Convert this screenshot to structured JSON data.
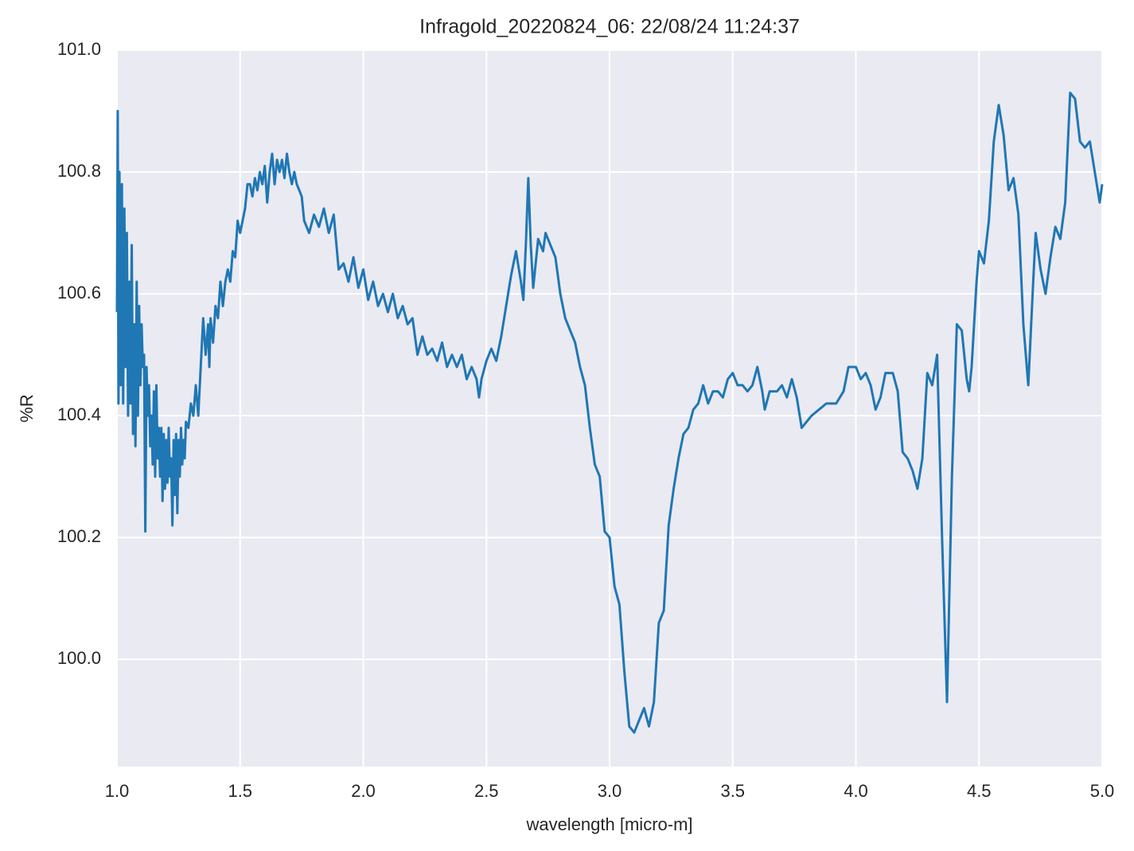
{
  "chart_data": {
    "type": "line",
    "title": "Infragold_20220824_06:  22/08/24 11:24:37",
    "xlabel": "wavelength [micro-m]",
    "ylabel": "%R",
    "color": "#1f77b4",
    "grid": true,
    "xlim": [
      1.0,
      5.0
    ],
    "ylim": [
      99.824,
      101.0
    ],
    "xticks": [
      {
        "value": 1,
        "label": "1.0"
      },
      1.5,
      {
        "value": 2,
        "label": "2.0"
      },
      2.5,
      {
        "value": 3,
        "label": "3.0"
      },
      3.5,
      {
        "value": 4,
        "label": "4.0"
      },
      4.5,
      {
        "value": 5,
        "label": "5.0"
      }
    ],
    "yticks": [
      {
        "value": 100,
        "label": "100.0"
      },
      100.2,
      100.4,
      100.6,
      100.8,
      {
        "value": 101,
        "label": "101.0"
      }
    ],
    "x": [
      1.0,
      1.003,
      1.006,
      1.01,
      1.015,
      1.02,
      1.025,
      1.03,
      1.035,
      1.04,
      1.045,
      1.05,
      1.055,
      1.06,
      1.065,
      1.07,
      1.075,
      1.08,
      1.085,
      1.09,
      1.095,
      1.1,
      1.105,
      1.11,
      1.115,
      1.12,
      1.125,
      1.13,
      1.135,
      1.14,
      1.145,
      1.15,
      1.155,
      1.16,
      1.165,
      1.17,
      1.175,
      1.18,
      1.185,
      1.19,
      1.195,
      1.2,
      1.205,
      1.21,
      1.215,
      1.22,
      1.225,
      1.23,
      1.235,
      1.24,
      1.245,
      1.25,
      1.255,
      1.26,
      1.265,
      1.27,
      1.275,
      1.28,
      1.29,
      1.3,
      1.31,
      1.32,
      1.33,
      1.34,
      1.345,
      1.35,
      1.36,
      1.37,
      1.375,
      1.38,
      1.39,
      1.4,
      1.41,
      1.42,
      1.43,
      1.44,
      1.45,
      1.46,
      1.47,
      1.48,
      1.49,
      1.5,
      1.51,
      1.52,
      1.53,
      1.54,
      1.55,
      1.56,
      1.57,
      1.58,
      1.59,
      1.6,
      1.61,
      1.62,
      1.63,
      1.64,
      1.65,
      1.66,
      1.67,
      1.68,
      1.69,
      1.7,
      1.71,
      1.72,
      1.73,
      1.75,
      1.76,
      1.78,
      1.8,
      1.82,
      1.84,
      1.86,
      1.88,
      1.9,
      1.92,
      1.94,
      1.96,
      1.98,
      2.0,
      2.02,
      2.04,
      2.06,
      2.08,
      2.1,
      2.12,
      2.14,
      2.16,
      2.18,
      2.2,
      2.22,
      2.24,
      2.26,
      2.28,
      2.3,
      2.32,
      2.34,
      2.36,
      2.38,
      2.4,
      2.42,
      2.44,
      2.46,
      2.47,
      2.48,
      2.5,
      2.52,
      2.54,
      2.56,
      2.58,
      2.6,
      2.62,
      2.64,
      2.65,
      2.66,
      2.67,
      2.68,
      2.69,
      2.71,
      2.73,
      2.74,
      2.76,
      2.78,
      2.8,
      2.82,
      2.84,
      2.86,
      2.88,
      2.9,
      2.92,
      2.94,
      2.96,
      2.98,
      3.0,
      3.02,
      3.04,
      3.06,
      3.08,
      3.1,
      3.12,
      3.14,
      3.16,
      3.18,
      3.2,
      3.22,
      3.24,
      3.26,
      3.28,
      3.3,
      3.32,
      3.34,
      3.36,
      3.38,
      3.4,
      3.42,
      3.44,
      3.46,
      3.48,
      3.5,
      3.52,
      3.54,
      3.56,
      3.58,
      3.6,
      3.62,
      3.63,
      3.65,
      3.68,
      3.7,
      3.72,
      3.74,
      3.76,
      3.78,
      3.8,
      3.82,
      3.85,
      3.88,
      3.9,
      3.92,
      3.95,
      3.97,
      4.0,
      4.02,
      4.04,
      4.06,
      4.08,
      4.1,
      4.12,
      4.15,
      4.17,
      4.19,
      4.21,
      4.23,
      4.25,
      4.27,
      4.29,
      4.31,
      4.33,
      4.35,
      4.37,
      4.39,
      4.41,
      4.43,
      4.45,
      4.46,
      4.47,
      4.49,
      4.5,
      4.52,
      4.54,
      4.56,
      4.58,
      4.6,
      4.62,
      4.64,
      4.66,
      4.68,
      4.7,
      4.72,
      4.73,
      4.75,
      4.77,
      4.79,
      4.81,
      4.83,
      4.85,
      4.87,
      4.89,
      4.91,
      4.93,
      4.95,
      4.97,
      4.99,
      5.0
    ],
    "values": [
      100.57,
      100.9,
      100.42,
      100.8,
      100.45,
      100.78,
      100.42,
      100.74,
      100.48,
      100.7,
      100.4,
      100.62,
      100.42,
      100.68,
      100.37,
      100.55,
      100.35,
      100.62,
      100.4,
      100.58,
      100.45,
      100.55,
      100.48,
      100.5,
      100.21,
      100.48,
      100.4,
      100.45,
      100.35,
      100.4,
      100.32,
      100.44,
      100.3,
      100.45,
      100.33,
      100.38,
      100.3,
      100.38,
      100.26,
      100.37,
      100.28,
      100.36,
      100.29,
      100.38,
      100.3,
      100.33,
      100.22,
      100.36,
      100.27,
      100.37,
      100.24,
      100.36,
      100.3,
      100.38,
      100.32,
      100.36,
      100.33,
      100.39,
      100.38,
      100.42,
      100.4,
      100.45,
      100.4,
      100.48,
      100.52,
      100.56,
      100.5,
      100.55,
      100.48,
      100.56,
      100.52,
      100.58,
      100.56,
      100.62,
      100.58,
      100.62,
      100.64,
      100.62,
      100.67,
      100.66,
      100.72,
      100.7,
      100.72,
      100.74,
      100.78,
      100.78,
      100.76,
      100.79,
      100.77,
      100.8,
      100.78,
      100.81,
      100.75,
      100.8,
      100.83,
      100.78,
      100.82,
      100.8,
      100.82,
      100.79,
      100.83,
      100.8,
      100.78,
      100.8,
      100.78,
      100.76,
      100.72,
      100.7,
      100.73,
      100.71,
      100.74,
      100.7,
      100.73,
      100.64,
      100.65,
      100.62,
      100.66,
      100.61,
      100.64,
      100.59,
      100.62,
      100.58,
      100.6,
      100.57,
      100.6,
      100.56,
      100.58,
      100.55,
      100.56,
      100.5,
      100.53,
      100.5,
      100.51,
      100.49,
      100.52,
      100.48,
      100.5,
      100.48,
      100.5,
      100.46,
      100.48,
      100.46,
      100.43,
      100.46,
      100.49,
      100.51,
      100.49,
      100.53,
      100.58,
      100.63,
      100.67,
      100.62,
      100.59,
      100.68,
      100.79,
      100.68,
      100.61,
      100.69,
      100.67,
      100.7,
      100.68,
      100.66,
      100.6,
      100.56,
      100.54,
      100.52,
      100.48,
      100.45,
      100.38,
      100.32,
      100.3,
      100.21,
      100.2,
      100.12,
      100.09,
      99.98,
      99.89,
      99.88,
      99.9,
      99.92,
      99.89,
      99.93,
      100.06,
      100.08,
      100.22,
      100.28,
      100.33,
      100.37,
      100.38,
      100.41,
      100.42,
      100.45,
      100.42,
      100.44,
      100.44,
      100.43,
      100.46,
      100.47,
      100.45,
      100.45,
      100.44,
      100.45,
      100.48,
      100.44,
      100.41,
      100.44,
      100.44,
      100.45,
      100.43,
      100.46,
      100.43,
      100.38,
      100.39,
      100.4,
      100.41,
      100.42,
      100.42,
      100.42,
      100.44,
      100.48,
      100.48,
      100.46,
      100.47,
      100.45,
      100.41,
      100.43,
      100.47,
      100.47,
      100.44,
      100.34,
      100.33,
      100.31,
      100.28,
      100.33,
      100.47,
      100.45,
      100.5,
      100.2,
      99.93,
      100.3,
      100.55,
      100.54,
      100.46,
      100.44,
      100.48,
      100.62,
      100.67,
      100.65,
      100.72,
      100.85,
      100.91,
      100.86,
      100.77,
      100.79,
      100.73,
      100.55,
      100.45,
      100.62,
      100.7,
      100.64,
      100.6,
      100.66,
      100.71,
      100.69,
      100.75,
      100.93,
      100.92,
      100.85,
      100.84,
      100.85,
      100.8,
      100.75,
      100.78
    ]
  }
}
